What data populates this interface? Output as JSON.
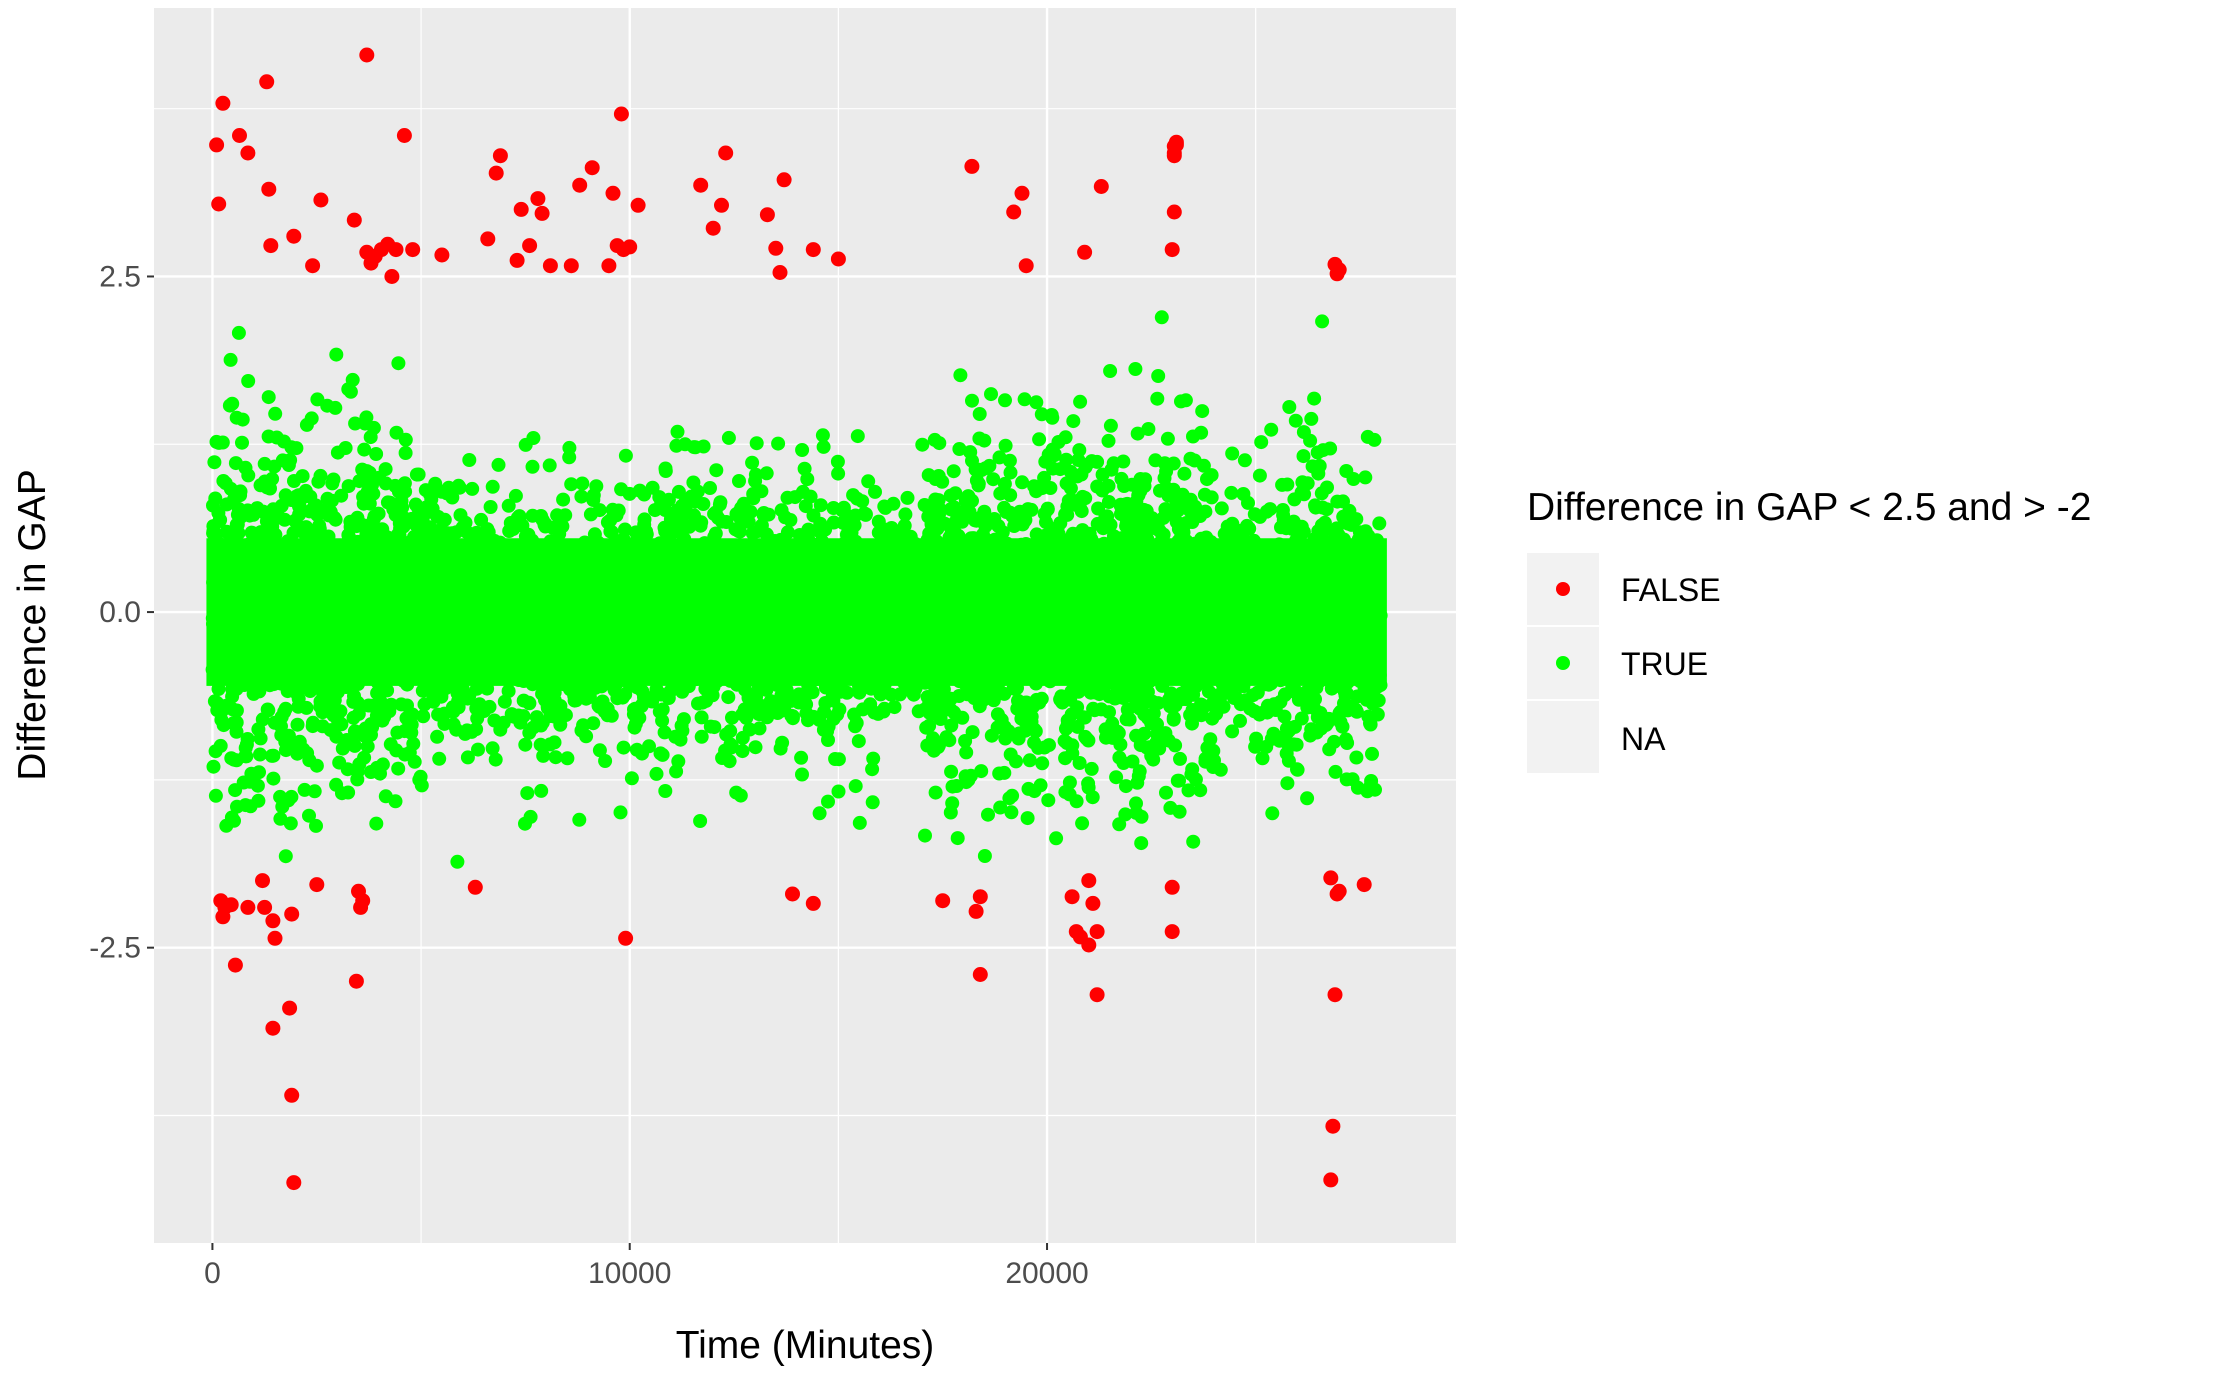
{
  "chart_data": {
    "type": "scatter",
    "title": "",
    "xlabel": "Time (Minutes)",
    "ylabel": "Difference in GAP",
    "xlim": [
      -1400,
      29800
    ],
    "ylim": [
      -4.7,
      4.5
    ],
    "x_ticks": [
      0,
      10000,
      20000
    ],
    "x_tick_labels": [
      "0",
      "10000",
      "20000"
    ],
    "x_minor_ticks": [
      5000,
      15000,
      25000
    ],
    "y_ticks": [
      -2.5,
      0,
      2.5
    ],
    "y_tick_labels": [
      "-2.5",
      "0.0",
      "2.5"
    ],
    "y_minor_ticks": [
      -3.75,
      -1.25,
      1.25,
      3.75
    ],
    "grid": true,
    "background": "#ebebeb",
    "legend": {
      "title": "Difference in GAP < 2.5 and > -2",
      "placement": "right",
      "entries": [
        {
          "label": "FALSE",
          "color": "#ff0000"
        },
        {
          "label": "TRUE",
          "color": "#00ff00"
        },
        {
          "label": "NA",
          "color": null
        }
      ]
    },
    "colors": {
      "FALSE": "#ff0000",
      "TRUE": "#00ff00"
    },
    "true_band": {
      "description": "dense cloud of TRUE points, approximately 28000 time steps",
      "x_range": [
        0,
        28000
      ],
      "y_range": [
        -2.0,
        2.45
      ],
      "sample_count": 5200
    },
    "series": [
      {
        "name": "FALSE",
        "x": [
          100,
          150,
          200,
          250,
          250,
          300,
          450,
          550,
          650,
          850,
          850,
          1200,
          1250,
          1300,
          1350,
          1400,
          1450,
          1450,
          1500,
          1850,
          1900,
          1900,
          1950,
          1950,
          2400,
          2500,
          2600,
          3400,
          3450,
          3500,
          3550,
          3600,
          3700,
          3700,
          3800,
          3900,
          4050,
          4200,
          4300,
          4400,
          4600,
          4800,
          5500,
          6300,
          6600,
          6800,
          6900,
          7300,
          7400,
          7600,
          7800,
          7900,
          8100,
          8600,
          8800,
          9100,
          9500,
          9600,
          9700,
          9800,
          9850,
          9900,
          10000,
          10200,
          11700,
          12000,
          12200,
          12300,
          13300,
          13500,
          13600,
          13700,
          13900,
          14400,
          14400,
          15000,
          17500,
          18200,
          18300,
          18400,
          18400,
          19200,
          19400,
          19500,
          20600,
          20700,
          20800,
          20900,
          21000,
          21000,
          21100,
          21200,
          21200,
          21300,
          23000,
          23000,
          23000,
          23050,
          23050,
          23050,
          23050,
          23100,
          23100,
          26800,
          26800,
          26850,
          26900,
          26900,
          26950,
          26950,
          27000,
          27000,
          27600
        ],
        "y": [
          3.48,
          3.04,
          -2.15,
          3.79,
          -2.27,
          -2.2,
          -2.18,
          -2.63,
          3.55,
          3.42,
          -2.2,
          -2.0,
          -2.2,
          3.95,
          3.15,
          2.73,
          -2.3,
          -3.1,
          -2.43,
          -2.95,
          -2.25,
          -3.6,
          -4.25,
          2.8,
          2.58,
          -2.03,
          3.07,
          2.92,
          -2.75,
          -2.08,
          -2.2,
          -2.15,
          4.15,
          2.68,
          2.6,
          2.65,
          2.7,
          2.74,
          2.5,
          2.7,
          3.55,
          2.7,
          2.66,
          -2.05,
          2.78,
          3.27,
          3.4,
          2.62,
          3.0,
          2.73,
          3.08,
          2.97,
          2.58,
          2.58,
          3.18,
          3.31,
          2.58,
          3.12,
          2.73,
          3.71,
          2.7,
          -2.43,
          2.72,
          3.03,
          3.18,
          2.86,
          3.03,
          3.42,
          2.96,
          2.71,
          2.53,
          3.22,
          -2.1,
          -2.17,
          2.7,
          2.63,
          -2.15,
          3.32,
          -2.23,
          -2.12,
          -2.7,
          2.98,
          3.12,
          2.58,
          -2.12,
          -2.38,
          -2.42,
          2.68,
          -2.0,
          -2.48,
          -2.17,
          -2.38,
          -2.85,
          3.17,
          -2.05,
          -2.38,
          2.7,
          2.98,
          3.4,
          3.47,
          3.42,
          3.48,
          3.5,
          -1.98,
          -4.23,
          -3.83,
          -2.85,
          2.59,
          2.52,
          -2.1,
          2.55,
          -2.08,
          -2.03
        ]
      }
    ]
  }
}
